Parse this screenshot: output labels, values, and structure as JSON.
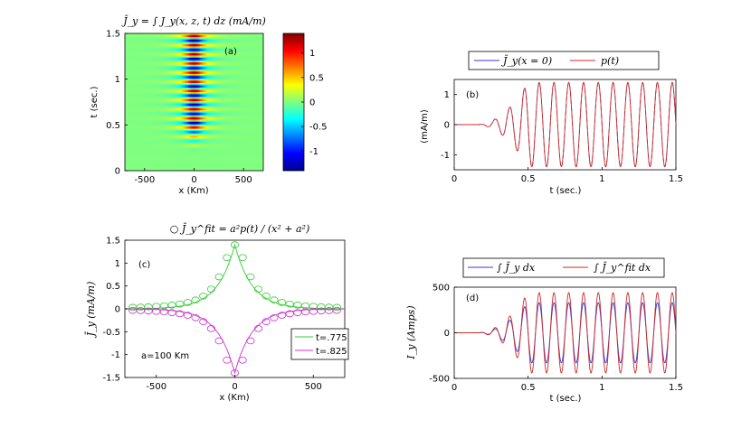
{
  "chart_data": [
    {
      "id": "a",
      "type": "heatmap",
      "panel_label": "(a)",
      "title": "J̄_y = ∫ J_y(x, z, t) dz  (mA/m)",
      "xlabel": "x (Km)",
      "ylabel": "t (sec.)",
      "xlim": [
        -700,
        700
      ],
      "ylim": [
        0,
        1.5
      ],
      "xticks": [
        -500,
        0,
        500
      ],
      "xtick_labels": [
        "-500",
        "0",
        "500"
      ],
      "yticks": [
        0,
        0.5,
        1,
        1.5
      ],
      "ytick_labels": [
        "0",
        "0.5",
        "1",
        "1.5"
      ],
      "colorbar": {
        "clim": [
          -1.4,
          1.4
        ],
        "ticks": [
          -1,
          -0.5,
          0,
          0.5,
          1
        ],
        "tick_labels": [
          "-1",
          "-0.5",
          "0",
          "0.5",
          "1"
        ]
      },
      "model": {
        "a_km": 100,
        "freq_hz": 10,
        "onset_s": 0.15,
        "rise_s": 0.35,
        "amplitude": 1.4
      }
    },
    {
      "id": "b",
      "type": "line",
      "panel_label": "(b)",
      "xlabel": "t (sec.)",
      "ylabel": "(mA/m)",
      "xlim": [
        0,
        1.5
      ],
      "ylim": [
        -1.5,
        1.5
      ],
      "xticks": [
        0,
        0.5,
        1,
        1.5
      ],
      "xtick_labels": [
        "0",
        "0.5",
        "1",
        "1.5"
      ],
      "yticks": [
        -1,
        0,
        1
      ],
      "ytick_labels": [
        "-1",
        "0",
        "1"
      ],
      "legend_position": "top",
      "series": [
        {
          "name": "J̄_y(x = 0)",
          "color": "#3a3acc",
          "dash": "5,3",
          "amplitude": 1.4
        },
        {
          "name": "p(t)",
          "color": "#cc2a2a",
          "dash": "",
          "amplitude": 1.4
        }
      ],
      "model": {
        "freq_hz": 10,
        "onset_s": 0.15,
        "rise_s": 0.35
      }
    },
    {
      "id": "c",
      "type": "line",
      "panel_label": "(c)",
      "title": "○ J̄_y^fit = a²p(t) / (x² + a²)",
      "xlabel": "x (Km)",
      "ylabel": "J̄_y (mA/m)",
      "xlim": [
        -700,
        700
      ],
      "ylim": [
        -1.5,
        1.5
      ],
      "xticks": [
        -500,
        0,
        500
      ],
      "xtick_labels": [
        "-500",
        "0",
        "500"
      ],
      "yticks": [
        -1.5,
        -1,
        -0.5,
        0,
        0.5,
        1,
        1.5
      ],
      "ytick_labels": [
        "-1.5",
        "-1",
        "-0.5",
        "0",
        "0.5",
        "1",
        "1.5"
      ],
      "annotation": "a=100 Km",
      "legend_position": "bottom-right",
      "series": [
        {
          "name": "t=.775",
          "color": "#33cc33",
          "peak": 1.4,
          "kind": "cusp"
        },
        {
          "name": "t=.825",
          "color": "#cc33cc",
          "peak": -1.4,
          "kind": "cusp"
        }
      ],
      "fit_markers": {
        "a_km": 100,
        "x_step_km": 50,
        "x_range": [
          -650,
          650
        ]
      }
    },
    {
      "id": "d",
      "type": "line",
      "panel_label": "(d)",
      "xlabel": "t (sec.)",
      "ylabel": "I_y (Amps)",
      "xlim": [
        0,
        1.5
      ],
      "ylim": [
        -500,
        500
      ],
      "xticks": [
        0,
        0.5,
        1,
        1.5
      ],
      "xtick_labels": [
        "0",
        "0.5",
        "1",
        "1.5"
      ],
      "yticks": [
        -500,
        0,
        500
      ],
      "ytick_labels": [
        "-500",
        "0",
        "500"
      ],
      "legend_position": "top",
      "series": [
        {
          "name": "∫ J̄_y dx",
          "color": "#3a3acc",
          "dash": "",
          "amplitude": 330
        },
        {
          "name": "∫ J̄_y^fit dx",
          "color": "#cc2a2a",
          "dash": "",
          "amplitude": 440
        }
      ],
      "model": {
        "freq_hz": 10,
        "onset_s": 0.15,
        "rise_s": 0.35
      }
    }
  ]
}
